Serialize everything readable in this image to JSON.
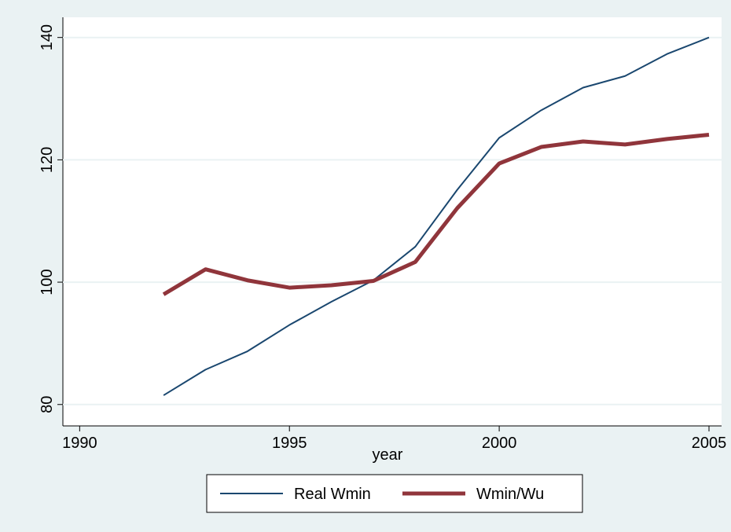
{
  "chart_data": {
    "type": "line",
    "xlabel": "year",
    "x": [
      1992,
      1993,
      1994,
      1995,
      1996,
      1997,
      1998,
      1999,
      2000,
      2001,
      2002,
      2003,
      2004,
      2005
    ],
    "series": [
      {
        "name": "Real Wmin",
        "color": "#1a476f",
        "width": 2,
        "values": [
          81.5,
          85.7,
          88.7,
          93.0,
          96.8,
          100.3,
          105.8,
          115.1,
          123.6,
          128.1,
          131.8,
          133.7,
          137.3,
          140.0
        ]
      },
      {
        "name": "Wmin/Wu",
        "color": "#90353b",
        "width": 5,
        "values": [
          98.0,
          102.1,
          100.3,
          99.1,
          99.5,
          100.2,
          103.3,
          112.1,
          119.4,
          122.1,
          123.0,
          122.5,
          123.4,
          124.1
        ]
      }
    ],
    "xlim": [
      1989.6,
      2005.3
    ],
    "xticks": [
      1990,
      1995,
      2000,
      2005
    ],
    "ylim": [
      76.5,
      143.3
    ],
    "yticks": [
      80,
      100,
      120,
      140
    ],
    "grid": true,
    "legend": "bottom"
  }
}
